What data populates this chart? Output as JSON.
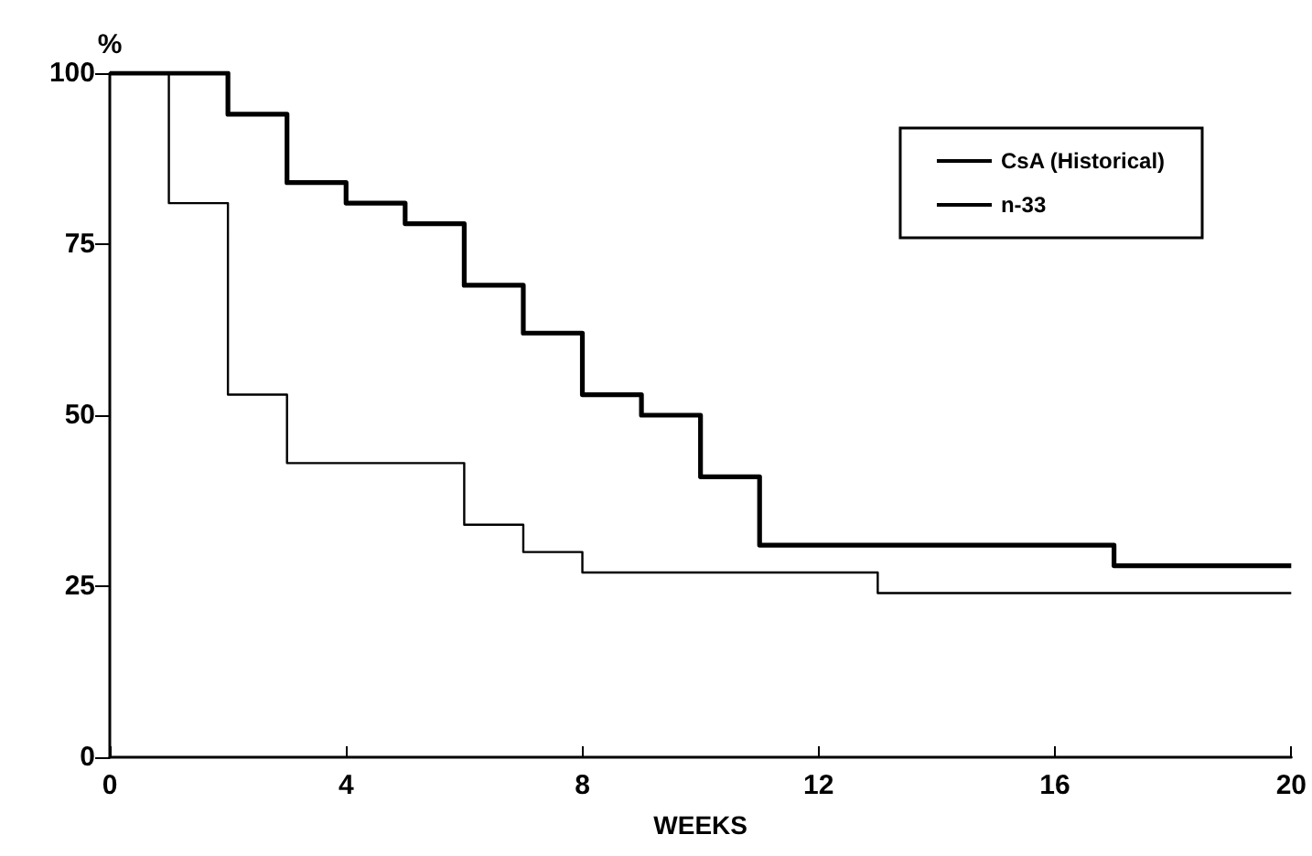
{
  "chart_data": {
    "type": "step",
    "xlabel": "WEEKS",
    "ylabel": "%",
    "xlim": [
      0,
      20
    ],
    "xticks": [
      0,
      4,
      8,
      12,
      16,
      20
    ],
    "ylim": [
      0,
      100
    ],
    "yticks": [
      0,
      25,
      50,
      75,
      100
    ],
    "grid": false,
    "legend": "top right",
    "marker": "none",
    "line_style": "solid",
    "series": [
      {
        "name": "CsA (Historical)",
        "color": "#000000",
        "x": [
          0,
          1,
          2,
          3,
          6,
          7,
          8,
          13,
          20
        ],
        "values": [
          100,
          81,
          53,
          43,
          34,
          30,
          27,
          24,
          24
        ]
      },
      {
        "name": "n-33",
        "color": "#000000",
        "x": [
          0,
          2,
          3,
          4,
          5,
          6,
          7,
          8,
          9,
          10,
          11,
          17,
          20
        ],
        "values": [
          100,
          94,
          84,
          81,
          78,
          69,
          62,
          53,
          50,
          41,
          31,
          28,
          28
        ]
      }
    ]
  }
}
